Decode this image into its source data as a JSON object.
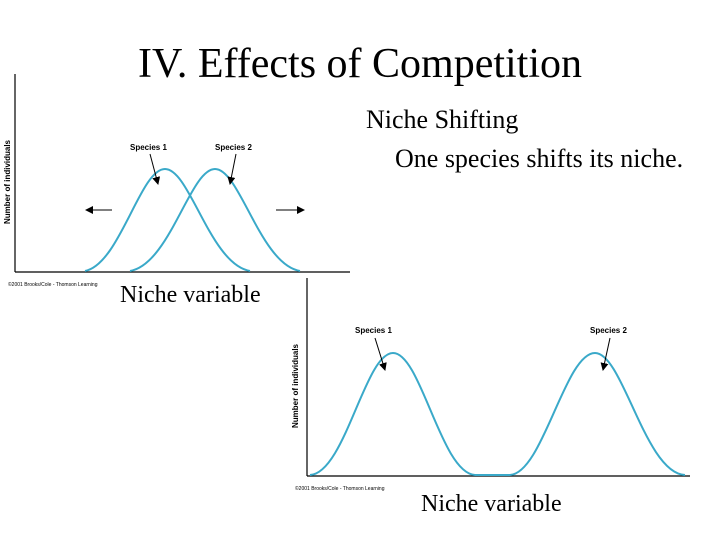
{
  "title": "IV. Effects of Competition",
  "bullet": {
    "heading": "Niche Shifting",
    "text": "One species shifts its niche."
  },
  "figure1": {
    "ylabel": "Number of individuals",
    "species1": "Species 1",
    "species2": "Species 2",
    "copyright": "©2001 Brooks/Cole - Thomson Learning",
    "caption": "Niche variable"
  },
  "figure2": {
    "ylabel": "Number of individuals",
    "species1": "Species 1",
    "species2": "Species 2",
    "copyright": "©2001 Brooks/Cole - Thomson Learning",
    "caption": "Niche variable"
  },
  "colors": {
    "curve": "#3aa9c9",
    "axis": "#000000"
  },
  "icons": [
    "left-arrow-icon",
    "right-arrow-icon",
    "pointer-arrow-icon"
  ]
}
